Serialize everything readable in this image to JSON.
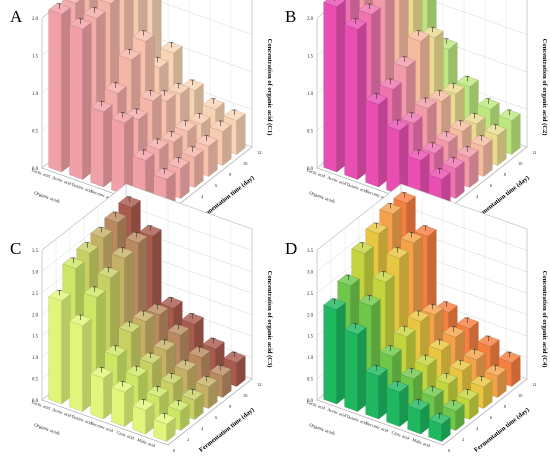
{
  "figure": {
    "panel_letters": [
      "A",
      "B",
      "C",
      "D"
    ]
  },
  "chart_data": [
    {
      "type": "bar3d",
      "panel": "A",
      "zlabel": "Concentration of organic acid (C1)",
      "xlabel": "Organic acids",
      "ylabel": "Fermentation time (day)",
      "zticks": [
        "0.0",
        "0.5",
        "1.0",
        "1.5",
        "2.0"
      ],
      "zlim": [
        0,
        2.0
      ],
      "acids": [
        "Lactic acid",
        "Acetic acid",
        "Tartaric acid",
        "Succinic acid",
        "Citric acid",
        "Malic acid"
      ],
      "time_ticks": [
        "0",
        "2",
        "4",
        "6",
        "8",
        "10",
        "12"
      ],
      "colors": [
        "#f0a0a6",
        "#f4aca8",
        "#f5b6aa",
        "#f7c1ad",
        "#f8cbb0",
        "#f9d4b4"
      ],
      "values": [
        [
          2.1,
          2.1,
          2.15,
          2.15,
          2.2,
          2.2
        ],
        [
          2.0,
          2.0,
          2.05,
          2.1,
          2.1,
          2.1
        ],
        [
          1.0,
          1.1,
          1.4,
          1.5,
          1.0,
          1.05
        ],
        [
          0.95,
          0.85,
          0.95,
          0.8,
          0.75,
          0.65
        ],
        [
          0.55,
          0.55,
          0.5,
          0.5,
          0.45,
          0.5
        ],
        [
          0.4,
          0.4,
          0.4,
          0.4,
          0.45,
          0.45
        ]
      ]
    },
    {
      "type": "bar3d",
      "panel": "B",
      "zlabel": "Concentration of organic acid (C2)",
      "xlabel": "Organic acids",
      "ylabel": "Fermentation time (day)",
      "zticks": [
        "0.0",
        "0.5",
        "1.0",
        "1.5",
        "2.0"
      ],
      "zlim": [
        0,
        2.0
      ],
      "acids": [
        "Lactic acid",
        "Acetic acid",
        "Tartaric acid",
        "Succinic acid",
        "Citric acid",
        "Malic acid"
      ],
      "time_ticks": [
        "0",
        "2",
        "4",
        "6",
        "8",
        "10",
        "12"
      ],
      "colors": [
        "#e94fb2",
        "#ee73b0",
        "#f29aa8",
        "#f5bba0",
        "#eadb90",
        "#bde880"
      ],
      "values": [
        [
          2.2,
          2.2,
          2.25,
          2.3,
          2.35,
          2.4
        ],
        [
          2.0,
          2.05,
          2.1,
          2.15,
          2.1,
          2.2
        ],
        [
          1.1,
          1.15,
          1.3,
          1.5,
          1.4,
          1.1
        ],
        [
          0.85,
          0.8,
          0.85,
          0.8,
          0.75,
          0.7
        ],
        [
          0.55,
          0.5,
          0.5,
          0.5,
          0.45,
          0.5
        ],
        [
          0.4,
          0.4,
          0.4,
          0.4,
          0.4,
          0.45
        ]
      ]
    },
    {
      "type": "bar3d",
      "panel": "C",
      "zlabel": "Concentration of organic acid (C3)",
      "xlabel": "Organic acids",
      "ylabel": "Fermentation time (day)",
      "zticks": [
        "0.0",
        "0.5",
        "1.0",
        "1.5",
        "2.0",
        "2.5",
        "3.0",
        "3.5"
      ],
      "zlim": [
        0,
        3.5
      ],
      "acids": [
        "Lactic acid",
        "Acetic acid",
        "Tartaric acid",
        "Succinic acid",
        "Citric acid",
        "Malic acid"
      ],
      "time_ticks": [
        "0",
        "2",
        "4",
        "6",
        "8",
        "10",
        "12"
      ],
      "colors": [
        "#e2f57a",
        "#cde665",
        "#c8cf63",
        "#c6b066",
        "#b98a5f",
        "#a85a4d"
      ],
      "values": [
        [
          2.4,
          2.9,
          3.0,
          3.1,
          3.2,
          3.3
        ],
        [
          2.0,
          2.4,
          2.6,
          2.8,
          2.9,
          2.8
        ],
        [
          0.95,
          1.2,
          1.5,
          1.5,
          1.4,
          1.3
        ],
        [
          0.8,
          0.9,
          0.95,
          1.0,
          1.1,
          1.1
        ],
        [
          0.55,
          0.6,
          0.65,
          0.7,
          0.75,
          0.7
        ],
        [
          0.4,
          0.45,
          0.45,
          0.5,
          0.5,
          0.55
        ]
      ]
    },
    {
      "type": "bar3d",
      "panel": "D",
      "zlabel": "Concentration of organic acid (C4)",
      "xlabel": "Organic acids",
      "ylabel": "Fermentation time (day)",
      "zticks": [
        "0.0",
        "0.5",
        "1.0",
        "1.5",
        "2.0",
        "2.5",
        "3.0",
        "3.5"
      ],
      "zlim": [
        0,
        3.5
      ],
      "acids": [
        "Lactic acid",
        "Acetic acid",
        "Tartaric acid",
        "Succinic acid",
        "Citric acid",
        "Malic acid"
      ],
      "time_ticks": [
        "0",
        "2",
        "4",
        "6",
        "8",
        "10",
        "12"
      ],
      "colors": [
        "#1fb860",
        "#6ec74a",
        "#c4d43e",
        "#e8c641",
        "#f3a24a",
        "#f57f3f"
      ],
      "values": [
        [
          2.2,
          2.5,
          3.0,
          3.2,
          3.4,
          3.4
        ],
        [
          1.8,
          2.2,
          2.5,
          2.8,
          2.9,
          2.8
        ],
        [
          1.0,
          1.2,
          1.4,
          1.5,
          1.4,
          1.2
        ],
        [
          0.8,
          0.85,
          0.9,
          1.0,
          1.05,
          1.0
        ],
        [
          0.55,
          0.6,
          0.65,
          0.7,
          0.7,
          0.75
        ],
        [
          0.4,
          0.45,
          0.45,
          0.5,
          0.5,
          0.55
        ]
      ]
    }
  ]
}
